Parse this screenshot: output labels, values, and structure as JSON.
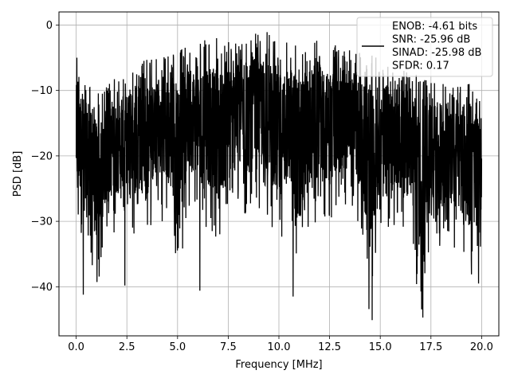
{
  "chart_data": {
    "type": "line",
    "title": "",
    "xlabel": "Frequency [MHz]",
    "ylabel": "PSD [dB]",
    "xlim": [
      -0.85,
      20.85
    ],
    "ylim": [
      -47.5,
      2.0
    ],
    "x_ticks": [
      0.0,
      2.5,
      5.0,
      7.5,
      10.0,
      12.5,
      15.0,
      17.5,
      20.0
    ],
    "x_tick_labels": [
      "0.0",
      "2.5",
      "5.0",
      "7.5",
      "10.0",
      "12.5",
      "15.0",
      "17.5",
      "20.0"
    ],
    "y_ticks": [
      0,
      -10,
      -20,
      -30,
      -40
    ],
    "y_tick_labels": [
      "0",
      "−10",
      "−20",
      "−30",
      "−40"
    ],
    "grid": true,
    "legend_position": "top-right",
    "series": [
      {
        "name": "ENOB: -4.61 bits\nSNR: -25.96 dB\nSINAD: -25.98 dB\nSFDR: 0.17",
        "color": "#000000",
        "x_range": [
          0.0,
          20.0
        ],
        "envelope_upper": [
          -5,
          -8,
          -10,
          -9,
          -8,
          -7,
          -6,
          -5,
          -5,
          -4,
          -4,
          -3,
          -3,
          -2,
          -2,
          -2,
          -2,
          -2,
          -1,
          -1,
          -2,
          -2,
          -2,
          -2,
          -2,
          -3,
          -3,
          -3,
          -4,
          -4,
          -5,
          -6,
          -7,
          -7,
          -7,
          -8,
          -9,
          -9,
          -9,
          -9,
          -10
        ],
        "envelope_lower": [
          -32,
          -34,
          -41,
          -33,
          -32,
          -30,
          -33,
          -32,
          -30,
          -30,
          -40,
          -29,
          -29,
          -32,
          -34,
          -30,
          -29,
          -30,
          -29,
          -30,
          -36,
          -32,
          -41,
          -32,
          -30,
          -31,
          -29,
          -29,
          -32,
          -45,
          -33,
          -31,
          -33,
          -33,
          -45,
          -33,
          -34,
          -34,
          -35,
          -39,
          -34
        ],
        "notable_minima": [
          {
            "x": 0.35,
            "y": -41.2
          },
          {
            "x": 2.4,
            "y": -39.8
          },
          {
            "x": 6.1,
            "y": -40.6
          },
          {
            "x": 10.7,
            "y": -41.5
          },
          {
            "x": 14.6,
            "y": -45.1
          },
          {
            "x": 17.1,
            "y": -44.7
          },
          {
            "x": 19.85,
            "y": -39.5
          }
        ],
        "start_peak": {
          "x": 0.03,
          "y": -5.0
        }
      }
    ]
  }
}
